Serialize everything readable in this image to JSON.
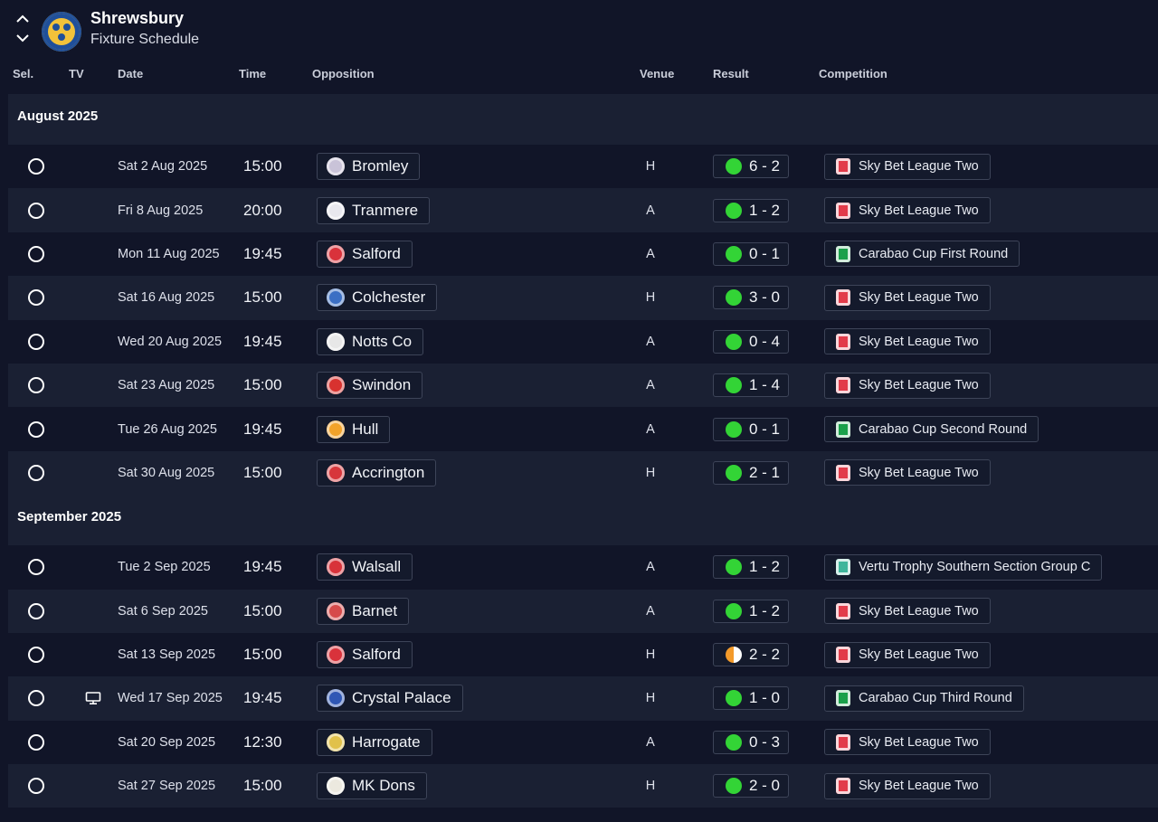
{
  "header": {
    "team": "Shrewsbury",
    "subtitle": "Fixture Schedule",
    "crest_icon": "shrewsbury-crest-icon"
  },
  "columns": {
    "sel": "Sel.",
    "tv": "TV",
    "date": "Date",
    "time": "Time",
    "opposition": "Opposition",
    "venue": "Venue",
    "result": "Result",
    "competition": "Competition"
  },
  "colors": {
    "background": "#111528",
    "row_alt": "#1a2033",
    "win": "#33d436",
    "draw": "#f39a2a",
    "league_two": "#e23b4a",
    "carabao": "#1aa04a",
    "vertu": "#3fb59b"
  },
  "months": [
    {
      "label": "August 2025",
      "fixtures": [
        {
          "tv": false,
          "date": "Sat 2 Aug 2025",
          "time": "15:00",
          "opponent": "Bromley",
          "badge": "#c9c3d8",
          "venue": "H",
          "outcome": "win",
          "score": "6 - 2",
          "competition": "Sky Bet League Two",
          "comp_type": "league"
        },
        {
          "tv": false,
          "date": "Fri 8 Aug 2025",
          "time": "20:00",
          "opponent": "Tranmere",
          "badge": "#e8e8ee",
          "venue": "A",
          "outcome": "win",
          "score": "1 - 2",
          "competition": "Sky Bet League Two",
          "comp_type": "league"
        },
        {
          "tv": false,
          "date": "Mon 11 Aug 2025",
          "time": "19:45",
          "opponent": "Salford",
          "badge": "#d9323b",
          "venue": "A",
          "outcome": "win",
          "score": "0 - 1",
          "competition": "Carabao Cup First Round",
          "comp_type": "carabao"
        },
        {
          "tv": false,
          "date": "Sat 16 Aug 2025",
          "time": "15:00",
          "opponent": "Colchester",
          "badge": "#3b6fc4",
          "venue": "H",
          "outcome": "win",
          "score": "3 - 0",
          "competition": "Sky Bet League Two",
          "comp_type": "league"
        },
        {
          "tv": false,
          "date": "Wed 20 Aug 2025",
          "time": "19:45",
          "opponent": "Notts Co",
          "badge": "#e7e7e7",
          "venue": "A",
          "outcome": "win",
          "score": "0 - 4",
          "competition": "Sky Bet League Two",
          "comp_type": "league"
        },
        {
          "tv": false,
          "date": "Sat 23 Aug 2025",
          "time": "15:00",
          "opponent": "Swindon",
          "badge": "#d8322f",
          "venue": "A",
          "outcome": "win",
          "score": "1 - 4",
          "competition": "Sky Bet League Two",
          "comp_type": "league"
        },
        {
          "tv": false,
          "date": "Tue 26 Aug 2025",
          "time": "19:45",
          "opponent": "Hull",
          "badge": "#f2a32a",
          "venue": "A",
          "outcome": "win",
          "score": "0 - 1",
          "competition": "Carabao Cup Second Round",
          "comp_type": "carabao"
        },
        {
          "tv": false,
          "date": "Sat 30 Aug 2025",
          "time": "15:00",
          "opponent": "Accrington",
          "badge": "#d7363b",
          "venue": "H",
          "outcome": "win",
          "score": "2 - 1",
          "competition": "Sky Bet League Two",
          "comp_type": "league"
        }
      ]
    },
    {
      "label": "September 2025",
      "fixtures": [
        {
          "tv": false,
          "date": "Tue 2 Sep 2025",
          "time": "19:45",
          "opponent": "Walsall",
          "badge": "#d8323a",
          "venue": "A",
          "outcome": "win",
          "score": "1 - 2",
          "competition": "Vertu Trophy Southern Section Group C",
          "comp_type": "vertu"
        },
        {
          "tv": false,
          "date": "Sat 6 Sep 2025",
          "time": "15:00",
          "opponent": "Barnet",
          "badge": "#d64a4a",
          "venue": "A",
          "outcome": "win",
          "score": "1 - 2",
          "competition": "Sky Bet League Two",
          "comp_type": "league"
        },
        {
          "tv": false,
          "date": "Sat 13 Sep 2025",
          "time": "15:00",
          "opponent": "Salford",
          "badge": "#d9323b",
          "venue": "H",
          "outcome": "draw",
          "score": "2 - 2",
          "competition": "Sky Bet League Two",
          "comp_type": "league"
        },
        {
          "tv": true,
          "date": "Wed 17 Sep 2025",
          "time": "19:45",
          "opponent": "Crystal Palace",
          "badge": "#2f57b5",
          "venue": "H",
          "outcome": "win",
          "score": "1 - 0",
          "competition": "Carabao Cup Third Round",
          "comp_type": "carabao"
        },
        {
          "tv": false,
          "date": "Sat 20 Sep 2025",
          "time": "12:30",
          "opponent": "Harrogate",
          "badge": "#e1c14a",
          "venue": "A",
          "outcome": "win",
          "score": "0 - 3",
          "competition": "Sky Bet League Two",
          "comp_type": "league"
        },
        {
          "tv": false,
          "date": "Sat 27 Sep 2025",
          "time": "15:00",
          "opponent": "MK Dons",
          "badge": "#ece9df",
          "venue": "H",
          "outcome": "win",
          "score": "2 - 0",
          "competition": "Sky Bet League Two",
          "comp_type": "league"
        }
      ]
    }
  ]
}
